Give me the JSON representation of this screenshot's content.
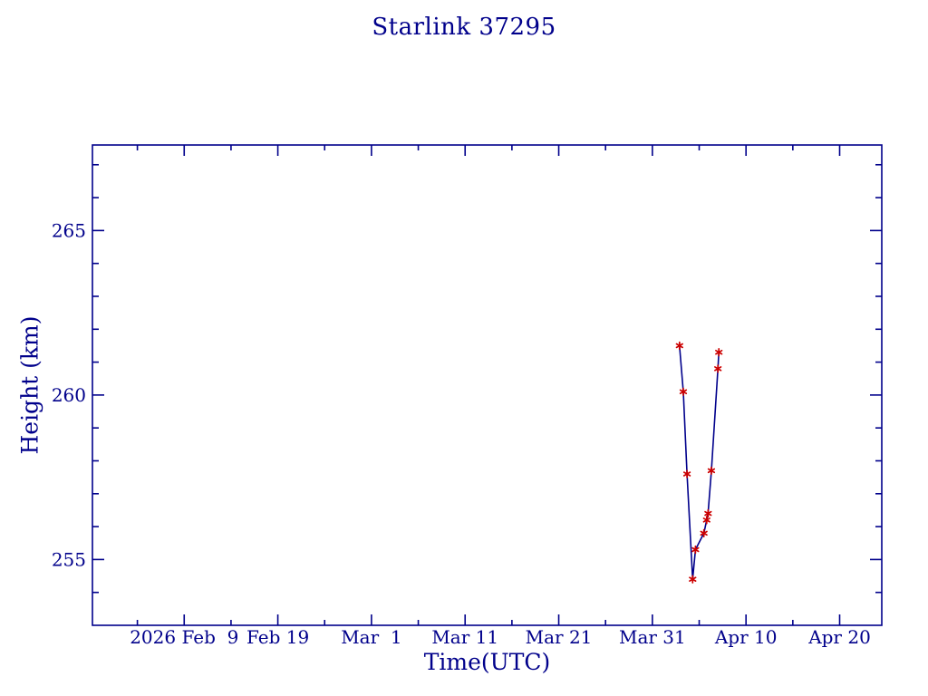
{
  "page": {
    "background": "#ffffff"
  },
  "chart_data": {
    "type": "line",
    "title": "Starlink 37295",
    "xlabel": "Time(UTC)",
    "ylabel": "Height (km)",
    "grid": "off",
    "legend": "none",
    "colors": {
      "ink": "#00008b",
      "marker_red": "#cc0000"
    },
    "x_axis": {
      "unit": "days since 2026 Feb 9",
      "range": [
        -9.8,
        74.5
      ],
      "major_ticks": [
        {
          "day": 0,
          "label": "2026 Feb  9"
        },
        {
          "day": 10,
          "label": "Feb 19"
        },
        {
          "day": 20,
          "label": "Mar  1"
        },
        {
          "day": 30,
          "label": "Mar 11"
        },
        {
          "day": 40,
          "label": "Mar 21"
        },
        {
          "day": 50,
          "label": "Mar 31"
        },
        {
          "day": 60,
          "label": "Apr 10"
        },
        {
          "day": 70,
          "label": "Apr 20"
        }
      ],
      "minor_ticks_days": [
        -5,
        5,
        15,
        25,
        35,
        45,
        55,
        65
      ]
    },
    "y_axis": {
      "unit": "km",
      "range": [
        253,
        267.6
      ],
      "major_ticks": [
        {
          "value": 255,
          "label": "255"
        },
        {
          "value": 260,
          "label": "260"
        },
        {
          "value": 265,
          "label": "265"
        }
      ],
      "minor_ticks_values": [
        254,
        256,
        257,
        258,
        259,
        261,
        262,
        263,
        264,
        266,
        267
      ]
    },
    "series": [
      {
        "name": "height",
        "marker": "asterisk",
        "line_color": "#00008b",
        "marker_color": "#cc0000",
        "points": [
          {
            "day": 52.9,
            "date_approx": "2026 Apr 2.9",
            "height_km": 261.5
          },
          {
            "day": 53.3,
            "date_approx": "2026 Apr 3.3",
            "height_km": 260.1
          },
          {
            "day": 53.7,
            "date_approx": "2026 Apr 3.7",
            "height_km": 257.6
          },
          {
            "day": 54.3,
            "date_approx": "2026 Apr 4.3",
            "height_km": 254.4
          },
          {
            "day": 54.6,
            "date_approx": "2026 Apr 4.6",
            "height_km": 255.3
          },
          {
            "day": 55.5,
            "date_approx": "2026 Apr 5.5",
            "height_km": 255.8
          },
          {
            "day": 55.8,
            "date_approx": "2026 Apr 5.8",
            "height_km": 256.2
          },
          {
            "day": 55.95,
            "date_approx": "2026 Apr 6.0",
            "height_km": 256.4
          },
          {
            "day": 56.3,
            "date_approx": "2026 Apr 6.3",
            "height_km": 257.7
          },
          {
            "day": 57.0,
            "date_approx": "2026 Apr 7.0",
            "height_km": 260.8
          },
          {
            "day": 57.1,
            "date_approx": "2026 Apr 7.1",
            "height_km": 261.3
          }
        ]
      }
    ]
  }
}
